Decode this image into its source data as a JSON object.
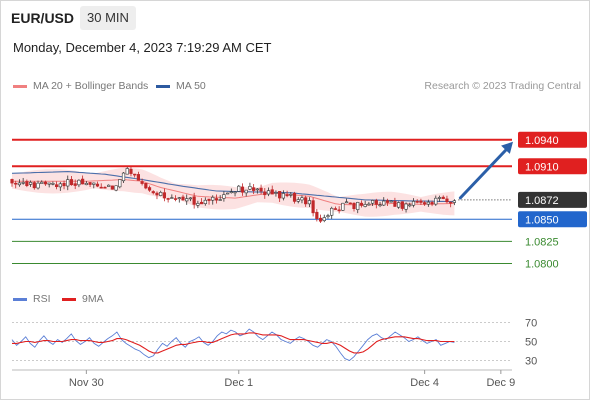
{
  "header": {
    "pair": "EUR/USD",
    "timeframe": "30 MIN",
    "timestamp": "Monday, December 4, 2023 7:19:29 AM CET"
  },
  "legend": {
    "ma20": "MA 20 + Bollinger Bands",
    "ma50": "MA 50",
    "source": "Research © 2023 Trading Central",
    "rsi": "RSI",
    "ma9": "9MA"
  },
  "colors": {
    "ma20": "#f08080",
    "ma50": "#2d5aa0",
    "resistance": "#e02020",
    "support": "#2266cc",
    "target": "#3a8a30",
    "arrow": "#2b5fa8",
    "current": "#333333",
    "bullish_candle": "#ffffff",
    "bearish_candle": "#c0282a",
    "bands_fill": "#fbd8d8",
    "rsi": "#5b7fd6"
  },
  "chart_data": [
    {
      "type": "line",
      "title": "",
      "series": [
        {
          "name": "MA 20 + Bollinger Bands",
          "kind": "moving_average"
        },
        {
          "name": "MA 50",
          "kind": "moving_average"
        }
      ],
      "price_samples": [
        [
          0,
          1.0895
        ],
        [
          10,
          1.0888
        ],
        [
          20,
          1.0889
        ],
        [
          30,
          1.0891
        ],
        [
          40,
          1.089
        ],
        [
          48,
          1.0889
        ],
        [
          55,
          1.0884
        ],
        [
          60,
          1.0905
        ],
        [
          64,
          1.0905
        ],
        [
          68,
          1.0895
        ],
        [
          72,
          1.0888
        ],
        [
          78,
          1.088
        ],
        [
          90,
          1.0872
        ],
        [
          100,
          1.087
        ],
        [
          110,
          1.0874
        ],
        [
          118,
          1.0882
        ],
        [
          125,
          1.0885
        ],
        [
          130,
          1.0883
        ],
        [
          140,
          1.0879
        ],
        [
          150,
          1.0875
        ],
        [
          160,
          1.0868
        ],
        [
          166,
          1.0846
        ],
        [
          170,
          1.0858
        ],
        [
          180,
          1.0866
        ],
        [
          190,
          1.0866
        ],
        [
          200,
          1.087
        ],
        [
          210,
          1.0864
        ],
        [
          220,
          1.0868
        ],
        [
          230,
          1.0872
        ],
        [
          238,
          1.087
        ]
      ],
      "ma20": [
        [
          0,
          1.0893
        ],
        [
          20,
          1.0893
        ],
        [
          40,
          1.0893
        ],
        [
          60,
          1.0895
        ],
        [
          70,
          1.0893
        ],
        [
          80,
          1.0886
        ],
        [
          100,
          1.0876
        ],
        [
          120,
          1.0874
        ],
        [
          140,
          1.088
        ],
        [
          160,
          1.0876
        ],
        [
          175,
          1.0867
        ],
        [
          190,
          1.0866
        ],
        [
          205,
          1.0868
        ],
        [
          220,
          1.0867
        ],
        [
          238,
          1.0868
        ]
      ],
      "ma50": [
        [
          0,
          1.0902
        ],
        [
          30,
          1.0904
        ],
        [
          50,
          1.0901
        ],
        [
          70,
          1.0895
        ],
        [
          90,
          1.0888
        ],
        [
          110,
          1.0882
        ],
        [
          130,
          1.0881
        ],
        [
          150,
          1.088
        ],
        [
          170,
          1.0876
        ],
        [
          190,
          1.0872
        ],
        [
          210,
          1.0871
        ],
        [
          238,
          1.087
        ]
      ],
      "band_width": 0.0011,
      "levels": [
        {
          "value": 1.094,
          "label": "1.0940",
          "type": "resistance"
        },
        {
          "value": 1.091,
          "label": "1.0910",
          "type": "resistance"
        },
        {
          "value": 1.0872,
          "label": "1.0872",
          "type": "current"
        },
        {
          "value": 1.085,
          "label": "1.0850",
          "type": "support"
        },
        {
          "value": 1.0825,
          "label": "1.0825",
          "type": "target"
        },
        {
          "value": 1.08,
          "label": "1.0800",
          "type": "target"
        }
      ],
      "projection_to": 1.094,
      "x_ticks": [
        {
          "label": "Nov 30",
          "bar": 40
        },
        {
          "label": "Dec 1",
          "bar": 122
        },
        {
          "label": "Dec 4",
          "bar": 222
        },
        {
          "label": "Dec 9",
          "bar": 263
        }
      ],
      "bars_total": 270,
      "ylim": [
        1.077,
        1.0985
      ]
    },
    {
      "type": "line",
      "title": "",
      "series": [
        {
          "name": "RSI",
          "values": [
            52,
            46,
            50,
            55,
            48,
            44,
            51,
            56,
            50,
            47,
            52,
            49,
            53,
            58,
            51,
            47,
            50,
            54,
            48,
            45,
            49,
            53,
            56,
            60,
            52,
            48,
            45,
            42,
            40,
            36,
            33,
            35,
            42,
            48,
            45,
            50,
            54,
            48,
            44,
            50,
            52,
            55,
            49,
            46,
            50,
            56,
            60,
            58,
            62,
            60,
            56,
            58,
            63,
            60,
            55,
            52,
            56,
            60,
            57,
            52,
            50,
            48,
            52,
            55,
            53,
            50,
            46,
            44,
            48,
            52,
            50,
            45,
            38,
            32,
            30,
            34,
            40,
            46,
            52,
            56,
            58,
            54,
            52,
            56,
            60,
            57,
            54,
            50,
            52,
            55,
            51,
            48,
            50,
            52,
            46,
            48,
            50,
            49
          ]
        },
        {
          "name": "9MA",
          "values": [
            48,
            48,
            49,
            50,
            50,
            49,
            50,
            51,
            51,
            50,
            50,
            50,
            51,
            52,
            52,
            51,
            51,
            51,
            50,
            49,
            49,
            50,
            51,
            53,
            53,
            52,
            50,
            48,
            46,
            43,
            40,
            38,
            38,
            40,
            42,
            44,
            46,
            47,
            47,
            48,
            49,
            50,
            50,
            49,
            49,
            51,
            53,
            55,
            57,
            58,
            58,
            58,
            59,
            59,
            58,
            57,
            57,
            57,
            57,
            56,
            54,
            52,
            52,
            52,
            52,
            51,
            50,
            49,
            48,
            48,
            49,
            48,
            46,
            43,
            40,
            38,
            38,
            39,
            42,
            46,
            50,
            52,
            53,
            54,
            55,
            55,
            55,
            54,
            53,
            53,
            52,
            51,
            51,
            51,
            50,
            50,
            50,
            50
          ]
        }
      ],
      "ylim": [
        20,
        80
      ],
      "levels": [
        70,
        50,
        30
      ],
      "level_labels": [
        "70",
        "50",
        "30"
      ]
    }
  ]
}
